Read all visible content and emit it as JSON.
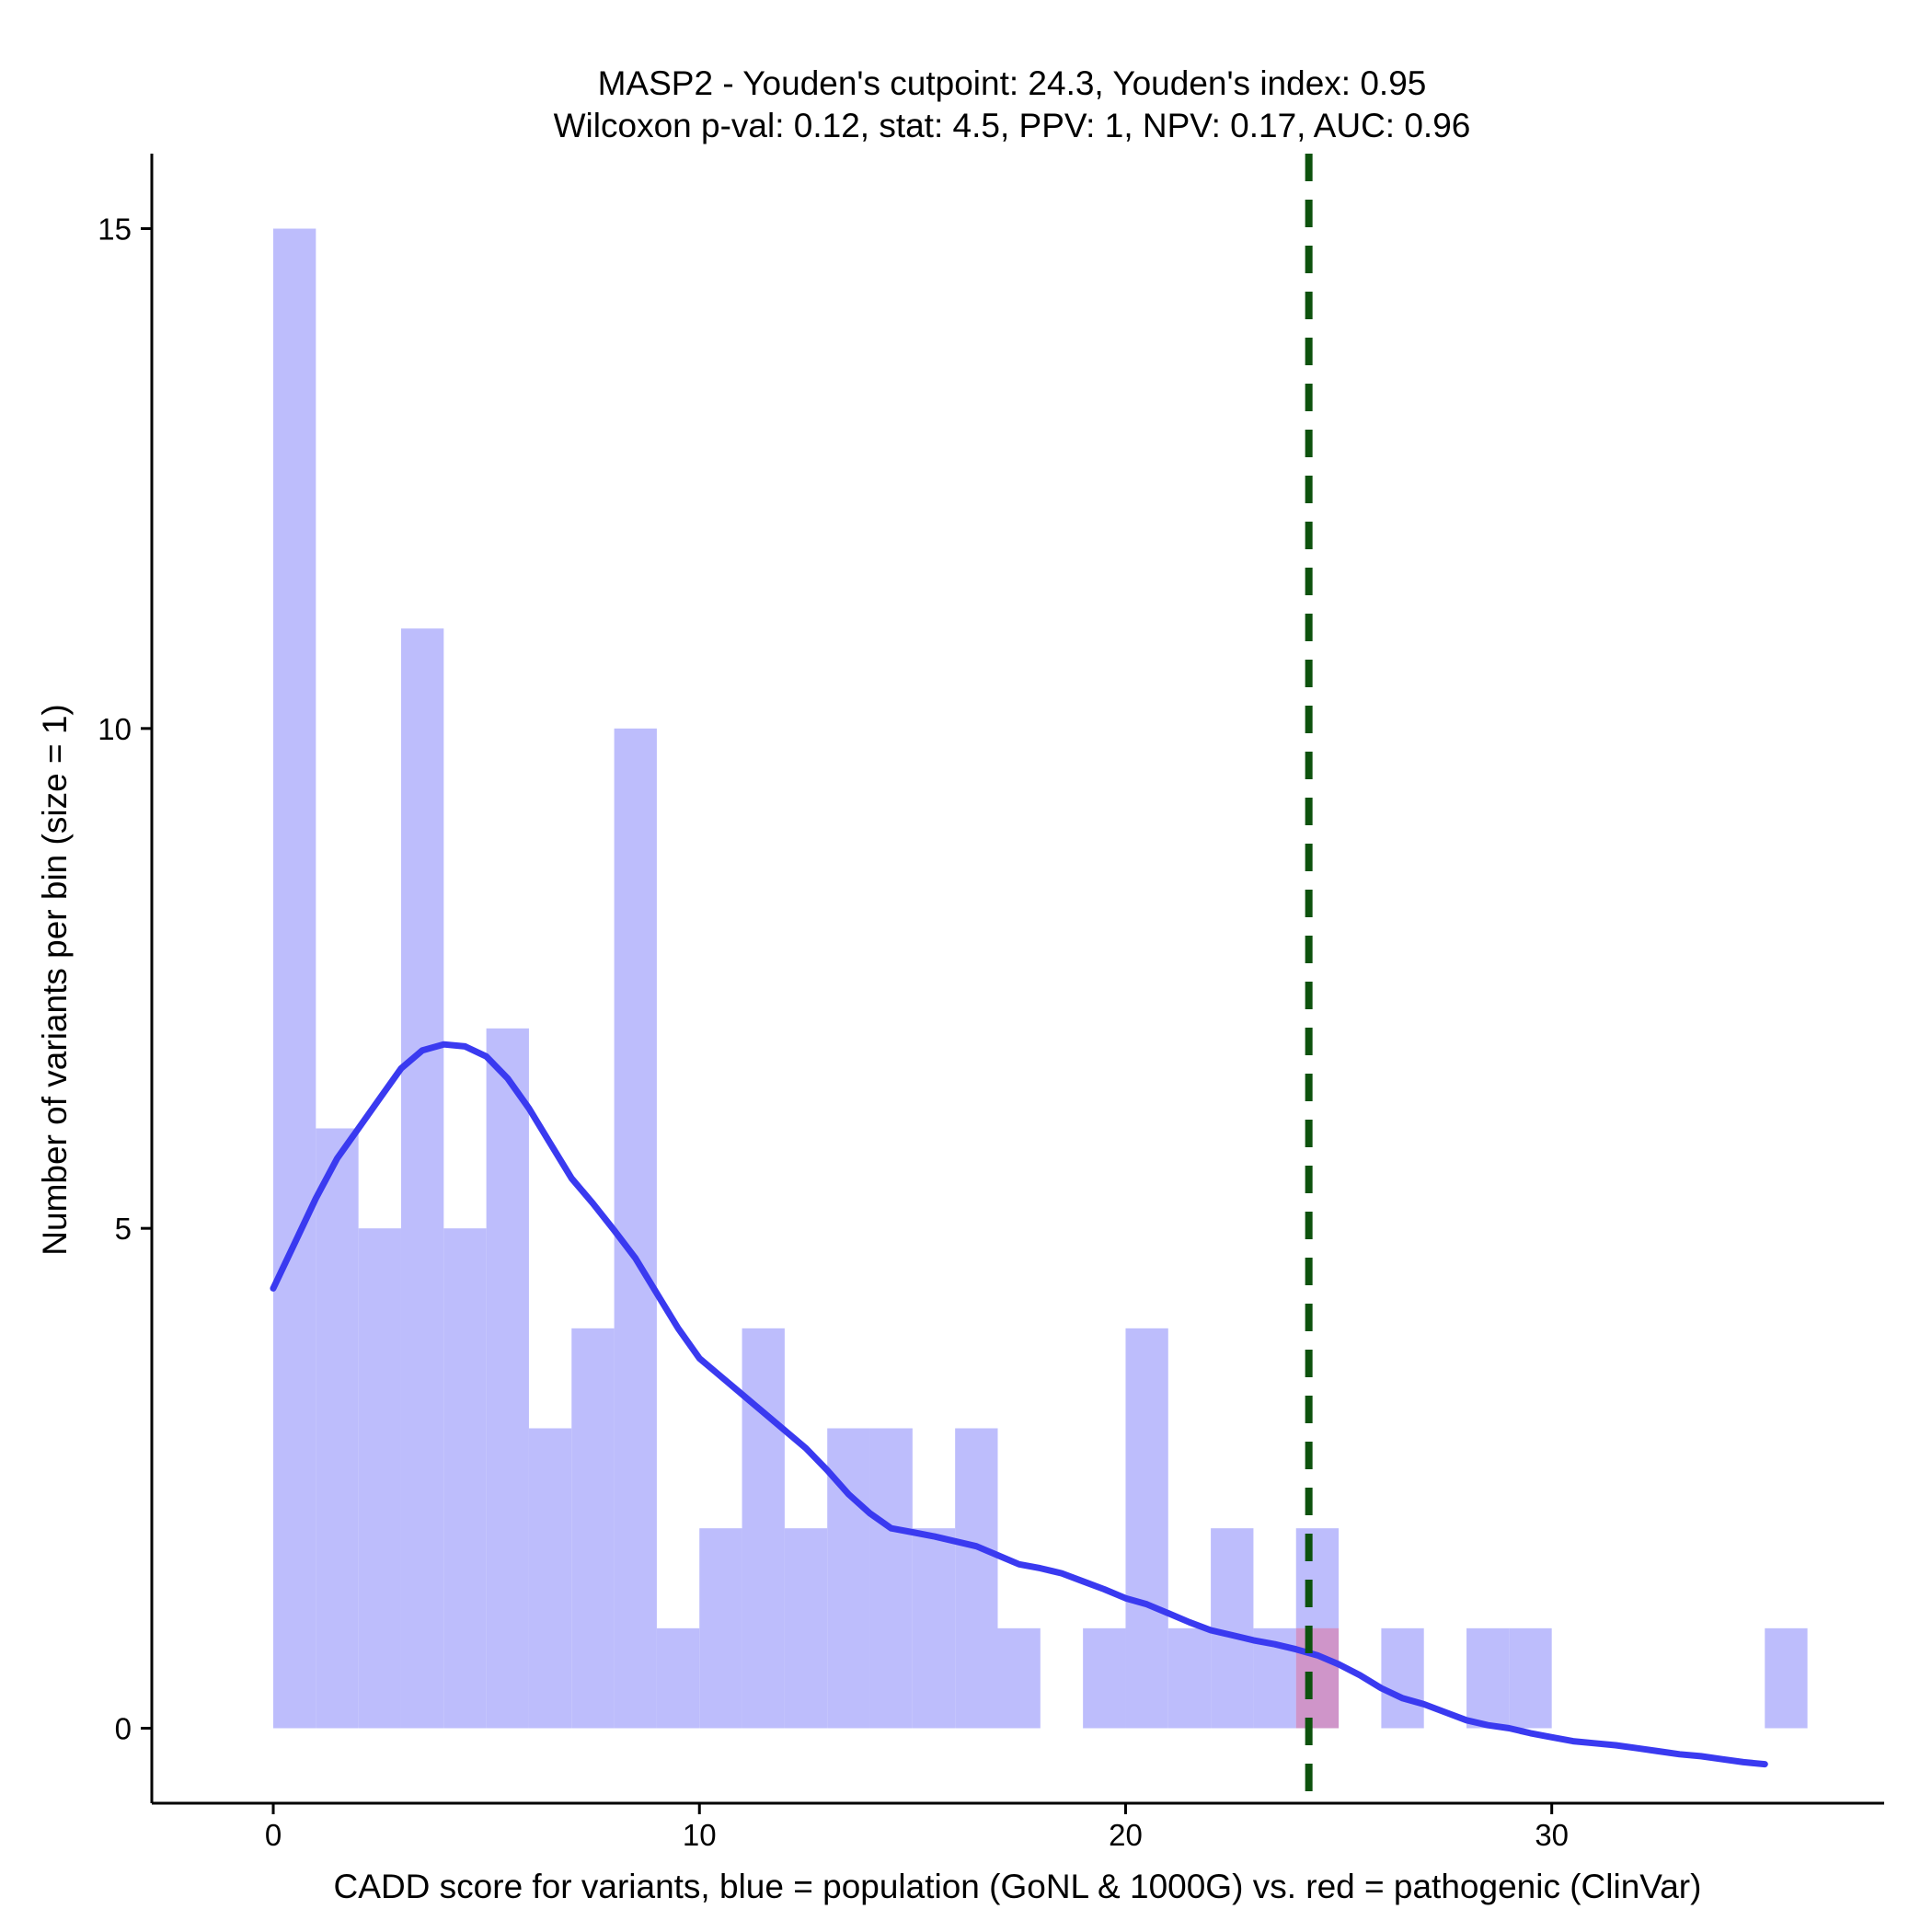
{
  "chart_data": {
    "type": "bar",
    "title": [
      "MASP2 - Youden's cutpoint: 24.3, Youden's index: 0.95",
      "Wilcoxon p-val: 0.12, stat: 4.5, PPV: 1, NPV: 0.17, AUC: 0.96"
    ],
    "xlabel": "CADD score for variants, blue = population (GoNL & 1000G) vs. red = pathogenic (ClinVar)",
    "ylabel": "Number of variants per bin (size = 1)",
    "xlim": [
      -2.85,
      37.8
    ],
    "ylim": [
      -0.75,
      15.75
    ],
    "x_ticks": [
      {
        "value": 0,
        "label": "0"
      },
      {
        "value": 10,
        "label": "10"
      },
      {
        "value": 20,
        "label": "20"
      },
      {
        "value": 30,
        "label": "30"
      }
    ],
    "y_ticks": [
      {
        "value": 0,
        "label": "0"
      },
      {
        "value": 5,
        "label": "5"
      },
      {
        "value": 10,
        "label": "10"
      },
      {
        "value": 15,
        "label": "15"
      }
    ],
    "bin_width": 1,
    "series": [
      {
        "name": "population (GoNL & 1000G)",
        "color": "#bdbdfc",
        "bins": [
          {
            "x0": 0,
            "count": 15
          },
          {
            "x0": 1,
            "count": 6
          },
          {
            "x0": 2,
            "count": 5
          },
          {
            "x0": 3,
            "count": 11
          },
          {
            "x0": 4,
            "count": 5
          },
          {
            "x0": 5,
            "count": 7
          },
          {
            "x0": 6,
            "count": 3
          },
          {
            "x0": 7,
            "count": 4
          },
          {
            "x0": 8,
            "count": 10
          },
          {
            "x0": 9,
            "count": 1
          },
          {
            "x0": 10,
            "count": 2
          },
          {
            "x0": 11,
            "count": 4
          },
          {
            "x0": 12,
            "count": 2
          },
          {
            "x0": 13,
            "count": 3
          },
          {
            "x0": 14,
            "count": 3
          },
          {
            "x0": 15,
            "count": 2
          },
          {
            "x0": 16,
            "count": 3
          },
          {
            "x0": 17,
            "count": 1
          },
          {
            "x0": 18,
            "count": 0
          },
          {
            "x0": 19,
            "count": 1
          },
          {
            "x0": 20,
            "count": 4
          },
          {
            "x0": 21,
            "count": 1
          },
          {
            "x0": 22,
            "count": 2
          },
          {
            "x0": 23,
            "count": 1
          },
          {
            "x0": 24,
            "count": 2
          },
          {
            "x0": 25,
            "count": 0
          },
          {
            "x0": 26,
            "count": 1
          },
          {
            "x0": 27,
            "count": 0
          },
          {
            "x0": 28,
            "count": 1
          },
          {
            "x0": 29,
            "count": 1
          },
          {
            "x0": 30,
            "count": 0
          },
          {
            "x0": 31,
            "count": 0
          },
          {
            "x0": 32,
            "count": 0
          },
          {
            "x0": 33,
            "count": 0
          },
          {
            "x0": 34,
            "count": 0
          },
          {
            "x0": 35,
            "count": 1
          }
        ]
      },
      {
        "name": "pathogenic (ClinVar)",
        "color": "#cf95c9",
        "bins": [
          {
            "x0": 24,
            "count": 1
          }
        ]
      }
    ],
    "density_curve": {
      "color": "#3a3af0",
      "points": [
        [
          0,
          4.4
        ],
        [
          0.5,
          4.85
        ],
        [
          1,
          5.3
        ],
        [
          1.5,
          5.7
        ],
        [
          2,
          6.0
        ],
        [
          2.5,
          6.3
        ],
        [
          3,
          6.6
        ],
        [
          3.5,
          6.78
        ],
        [
          4,
          6.84
        ],
        [
          4.5,
          6.82
        ],
        [
          5,
          6.72
        ],
        [
          5.5,
          6.5
        ],
        [
          6,
          6.2
        ],
        [
          6.5,
          5.85
        ],
        [
          7,
          5.5
        ],
        [
          7.5,
          5.25
        ],
        [
          8,
          4.98
        ],
        [
          8.5,
          4.7
        ],
        [
          9,
          4.35
        ],
        [
          9.5,
          4.0
        ],
        [
          10,
          3.7
        ],
        [
          10.5,
          3.52
        ],
        [
          11,
          3.34
        ],
        [
          11.5,
          3.16
        ],
        [
          12,
          2.98
        ],
        [
          12.5,
          2.8
        ],
        [
          13,
          2.58
        ],
        [
          13.5,
          2.34
        ],
        [
          14,
          2.15
        ],
        [
          14.5,
          2.0
        ],
        [
          15,
          1.96
        ],
        [
          15.5,
          1.92
        ],
        [
          16,
          1.87
        ],
        [
          16.5,
          1.82
        ],
        [
          17,
          1.73
        ],
        [
          17.5,
          1.64
        ],
        [
          18,
          1.6
        ],
        [
          18.5,
          1.55
        ],
        [
          19,
          1.47
        ],
        [
          19.5,
          1.39
        ],
        [
          20,
          1.3
        ],
        [
          20.5,
          1.24
        ],
        [
          21,
          1.15
        ],
        [
          21.5,
          1.06
        ],
        [
          22,
          0.98
        ],
        [
          22.5,
          0.93
        ],
        [
          23,
          0.88
        ],
        [
          23.5,
          0.84
        ],
        [
          24,
          0.79
        ],
        [
          24.5,
          0.73
        ],
        [
          25,
          0.64
        ],
        [
          25.5,
          0.53
        ],
        [
          26,
          0.4
        ],
        [
          26.5,
          0.3
        ],
        [
          27,
          0.24
        ],
        [
          27.5,
          0.16
        ],
        [
          28,
          0.08
        ],
        [
          28.5,
          0.03
        ],
        [
          29,
          0.0
        ],
        [
          29.5,
          -0.05
        ],
        [
          30,
          -0.09
        ],
        [
          30.5,
          -0.13
        ],
        [
          31,
          -0.15
        ],
        [
          31.5,
          -0.17
        ],
        [
          32,
          -0.2
        ],
        [
          32.5,
          -0.23
        ],
        [
          33,
          -0.26
        ],
        [
          33.5,
          -0.28
        ],
        [
          34,
          -0.31
        ],
        [
          34.5,
          -0.34
        ],
        [
          35,
          -0.36
        ]
      ]
    },
    "cutpoint": {
      "x": 24.3,
      "color": "#0d520d",
      "style": "dashed"
    },
    "grid": false,
    "legend": "none"
  }
}
